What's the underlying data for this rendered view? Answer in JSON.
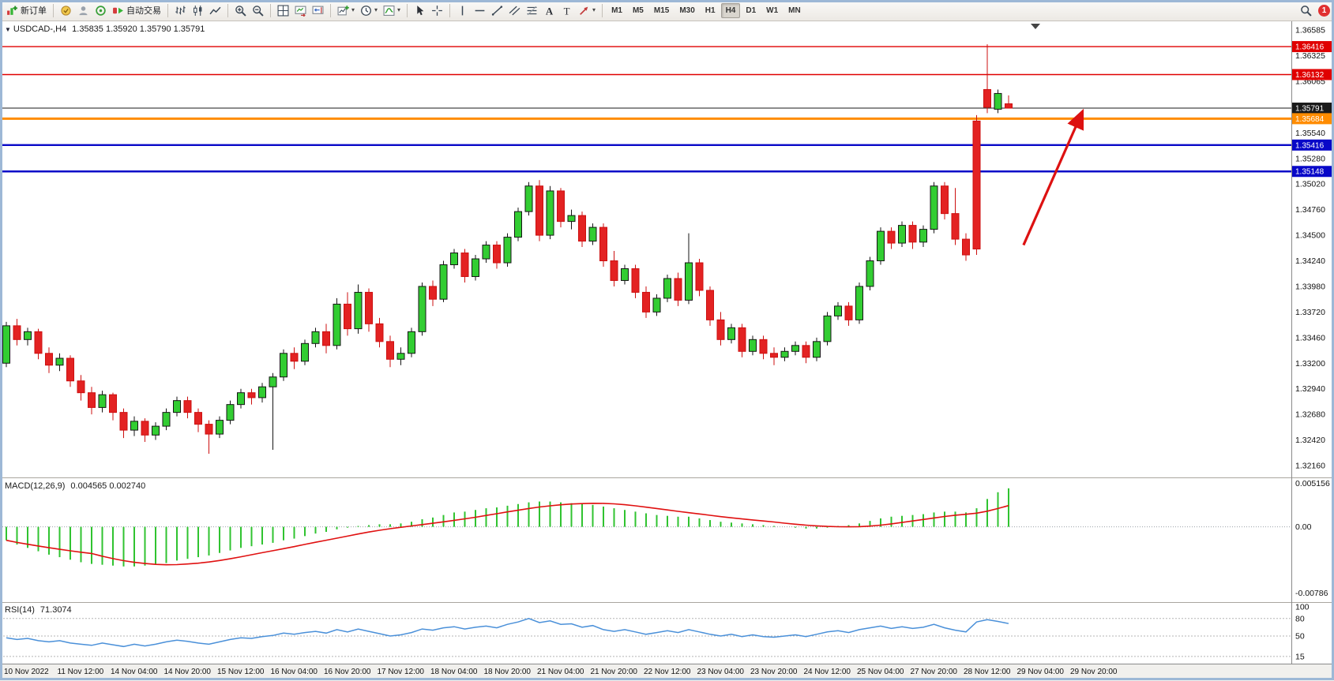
{
  "toolbar": {
    "new_order": "新订单",
    "auto_trading": "自动交易",
    "timeframes": [
      "M1",
      "M5",
      "M15",
      "M30",
      "H1",
      "H4",
      "D1",
      "W1",
      "MN"
    ],
    "active_timeframe": "H4",
    "notification_count": "1"
  },
  "chart": {
    "symbol_period": "USDCAD-,H4",
    "ohlc": "1.35835 1.35920 1.35790 1.35791",
    "price_axis": [
      "1.36585",
      "1.36325",
      "1.36065",
      "1.35540",
      "1.35280",
      "1.35020",
      "1.34760",
      "1.34500",
      "1.34240",
      "1.33980",
      "1.33720",
      "1.33460",
      "1.33200",
      "1.32940",
      "1.32680",
      "1.32420",
      "1.32160"
    ]
  },
  "macd": {
    "title": "MACD(12,26,9)",
    "values": "0.004565 0.002740",
    "axis": [
      {
        "v": 0.005156,
        "label": "0.005156"
      },
      {
        "v": 0,
        "label": "0.00"
      },
      {
        "v": -0.00786,
        "label": "-0.00786"
      }
    ]
  },
  "rsi": {
    "title": "RSI(14)",
    "value": "71.3074",
    "axis": [
      {
        "v": 100,
        "label": "100"
      },
      {
        "v": 80,
        "label": "80"
      },
      {
        "v": 50,
        "label": "50"
      },
      {
        "v": 15,
        "label": "15"
      }
    ],
    "levels": [
      80,
      50,
      15
    ]
  },
  "time_axis": [
    "10 Nov 2022",
    "11 Nov 12:00",
    "14 Nov 04:00",
    "14 Nov 20:00",
    "15 Nov 12:00",
    "16 Nov 04:00",
    "16 Nov 20:00",
    "17 Nov 12:00",
    "18 Nov 04:00",
    "18 Nov 20:00",
    "21 Nov 04:00",
    "21 Nov 20:00",
    "22 Nov 12:00",
    "23 Nov 04:00",
    "23 Nov 20:00",
    "24 Nov 12:00",
    "25 Nov 04:00",
    "27 Nov 20:00",
    "28 Nov 12:00",
    "29 Nov 04:00",
    "29 Nov 20:00"
  ],
  "chart_data": {
    "type": "candlestick",
    "symbol": "USDCAD-",
    "timeframe": "H4",
    "colors": {
      "bull_fill": "#32cd32",
      "bull_stroke": "#151515",
      "bear_fill": "#e32222",
      "bear_stroke": "#cc1010",
      "macd_histogram": "#30c330",
      "macd_signal": "#e01010",
      "rsi_line": "#4a90d9",
      "arrow": "#dd1111",
      "resistance": "#e00000",
      "support": "#0808c8",
      "pivot": "#ff8c00"
    },
    "candles": [
      [
        1.332,
        1.3362,
        1.3316,
        1.3358
      ],
      [
        1.3358,
        1.3365,
        1.3338,
        1.3344
      ],
      [
        1.3344,
        1.3356,
        1.3338,
        1.3352
      ],
      [
        1.3352,
        1.3355,
        1.3324,
        1.333
      ],
      [
        1.333,
        1.3336,
        1.331,
        1.3318
      ],
      [
        1.3318,
        1.333,
        1.3312,
        1.3325
      ],
      [
        1.3325,
        1.3328,
        1.3296,
        1.3302
      ],
      [
        1.3302,
        1.3308,
        1.3282,
        1.329
      ],
      [
        1.329,
        1.3296,
        1.3268,
        1.3275
      ],
      [
        1.3275,
        1.3292,
        1.327,
        1.3288
      ],
      [
        1.3288,
        1.329,
        1.3262,
        1.327
      ],
      [
        1.327,
        1.3274,
        1.3244,
        1.3252
      ],
      [
        1.3252,
        1.3266,
        1.3246,
        1.3261
      ],
      [
        1.3261,
        1.3264,
        1.324,
        1.3247
      ],
      [
        1.3247,
        1.326,
        1.3242,
        1.3256
      ],
      [
        1.3256,
        1.3274,
        1.3252,
        1.327
      ],
      [
        1.327,
        1.3286,
        1.3266,
        1.3282
      ],
      [
        1.3282,
        1.3286,
        1.3264,
        1.327
      ],
      [
        1.327,
        1.3274,
        1.325,
        1.3258
      ],
      [
        1.3258,
        1.3262,
        1.3228,
        1.3248
      ],
      [
        1.3248,
        1.3266,
        1.3244,
        1.3262
      ],
      [
        1.3262,
        1.3282,
        1.3258,
        1.3278
      ],
      [
        1.3278,
        1.3294,
        1.3274,
        1.329
      ],
      [
        1.329,
        1.3294,
        1.3278,
        1.3285
      ],
      [
        1.3285,
        1.33,
        1.328,
        1.3296
      ],
      [
        1.3296,
        1.331,
        1.3232,
        1.3306
      ],
      [
        1.3306,
        1.3334,
        1.3302,
        1.333
      ],
      [
        1.333,
        1.3336,
        1.3314,
        1.3322
      ],
      [
        1.3322,
        1.3344,
        1.3318,
        1.334
      ],
      [
        1.334,
        1.3356,
        1.3336,
        1.3352
      ],
      [
        1.3352,
        1.336,
        1.333,
        1.3338
      ],
      [
        1.3338,
        1.3386,
        1.3334,
        1.338
      ],
      [
        1.338,
        1.3392,
        1.3348,
        1.3355
      ],
      [
        1.3355,
        1.34,
        1.335,
        1.3392
      ],
      [
        1.3392,
        1.3396,
        1.3352,
        1.336
      ],
      [
        1.336,
        1.3366,
        1.3336,
        1.3342
      ],
      [
        1.3342,
        1.3348,
        1.3316,
        1.3324
      ],
      [
        1.3324,
        1.3336,
        1.3318,
        1.333
      ],
      [
        1.333,
        1.3356,
        1.3326,
        1.3352
      ],
      [
        1.3352,
        1.3402,
        1.3348,
        1.3398
      ],
      [
        1.3398,
        1.3404,
        1.3378,
        1.3385
      ],
      [
        1.3385,
        1.3424,
        1.3382,
        1.342
      ],
      [
        1.342,
        1.3436,
        1.3416,
        1.3432
      ],
      [
        1.3432,
        1.3436,
        1.3402,
        1.3408
      ],
      [
        1.3408,
        1.343,
        1.3404,
        1.3426
      ],
      [
        1.3426,
        1.3444,
        1.3422,
        1.344
      ],
      [
        1.344,
        1.3444,
        1.3416,
        1.3422
      ],
      [
        1.3422,
        1.3452,
        1.3418,
        1.3448
      ],
      [
        1.3448,
        1.3478,
        1.3444,
        1.3474
      ],
      [
        1.3474,
        1.3504,
        1.347,
        1.35
      ],
      [
        1.35,
        1.3506,
        1.3444,
        1.345
      ],
      [
        1.345,
        1.35,
        1.3446,
        1.3495
      ],
      [
        1.3495,
        1.3498,
        1.3458,
        1.3464
      ],
      [
        1.3464,
        1.3476,
        1.3456,
        1.347
      ],
      [
        1.347,
        1.3474,
        1.3438,
        1.3444
      ],
      [
        1.3444,
        1.3462,
        1.344,
        1.3458
      ],
      [
        1.3458,
        1.3462,
        1.3418,
        1.3424
      ],
      [
        1.3424,
        1.3434,
        1.3398,
        1.3404
      ],
      [
        1.3404,
        1.342,
        1.34,
        1.3416
      ],
      [
        1.3416,
        1.342,
        1.3386,
        1.3392
      ],
      [
        1.3392,
        1.3398,
        1.3366,
        1.3372
      ],
      [
        1.3372,
        1.339,
        1.3368,
        1.3386
      ],
      [
        1.3386,
        1.341,
        1.3382,
        1.3406
      ],
      [
        1.3406,
        1.3412,
        1.3378,
        1.3384
      ],
      [
        1.3384,
        1.3452,
        1.338,
        1.3422
      ],
      [
        1.3422,
        1.3426,
        1.3388,
        1.3394
      ],
      [
        1.3394,
        1.3398,
        1.3358,
        1.3364
      ],
      [
        1.3364,
        1.3372,
        1.3338,
        1.3344
      ],
      [
        1.3344,
        1.336,
        1.334,
        1.3356
      ],
      [
        1.3356,
        1.336,
        1.3326,
        1.3332
      ],
      [
        1.3332,
        1.3348,
        1.3328,
        1.3344
      ],
      [
        1.3344,
        1.3348,
        1.3324,
        1.333
      ],
      [
        1.333,
        1.3336,
        1.3318,
        1.3326
      ],
      [
        1.3326,
        1.3336,
        1.3322,
        1.3332
      ],
      [
        1.3332,
        1.3342,
        1.3328,
        1.3338
      ],
      [
        1.3338,
        1.3342,
        1.332,
        1.3326
      ],
      [
        1.3326,
        1.3346,
        1.3322,
        1.3342
      ],
      [
        1.3342,
        1.3372,
        1.3338,
        1.3368
      ],
      [
        1.3368,
        1.3382,
        1.3364,
        1.3378
      ],
      [
        1.3378,
        1.3382,
        1.3358,
        1.3364
      ],
      [
        1.3364,
        1.3402,
        1.336,
        1.3398
      ],
      [
        1.3398,
        1.3428,
        1.3394,
        1.3424
      ],
      [
        1.3424,
        1.3458,
        1.342,
        1.3454
      ],
      [
        1.3454,
        1.3458,
        1.3436,
        1.3442
      ],
      [
        1.3442,
        1.3464,
        1.3438,
        1.346
      ],
      [
        1.346,
        1.3464,
        1.3436,
        1.3443
      ],
      [
        1.3443,
        1.346,
        1.3438,
        1.3456
      ],
      [
        1.3456,
        1.3504,
        1.3452,
        1.35
      ],
      [
        1.35,
        1.3504,
        1.3466,
        1.3472
      ],
      [
        1.3472,
        1.3498,
        1.344,
        1.3446
      ],
      [
        1.3446,
        1.3452,
        1.3424,
        1.343
      ],
      [
        1.3566,
        1.3572,
        1.343,
        1.3436
      ],
      [
        1.3598,
        1.3644,
        1.3574,
        1.358
      ],
      [
        1.3578,
        1.3598,
        1.3574,
        1.3594
      ],
      [
        1.35835,
        1.3592,
        1.3579,
        1.35791
      ]
    ],
    "hlines": [
      {
        "name": "resistance-line-1",
        "price": 1.36416,
        "label": "1.36416",
        "color": "#e00000",
        "width": 1.4
      },
      {
        "name": "resistance-line-2",
        "price": 1.36132,
        "label": "1.36132",
        "color": "#e00000",
        "width": 1.4
      },
      {
        "name": "current-price-line",
        "price": 1.35791,
        "label": "1.35791",
        "color": "#1a1a1a",
        "width": 1
      },
      {
        "name": "pivot-line",
        "price": 1.35684,
        "label": "1.35684",
        "color": "#ff8c00",
        "width": 3
      },
      {
        "name": "support-line-1",
        "price": 1.35416,
        "label": "1.35416",
        "color": "#0808c8",
        "width": 2.4
      },
      {
        "name": "support-line-2",
        "price": 1.35148,
        "label": "1.35148",
        "color": "#0808c8",
        "width": 2.4
      }
    ],
    "macd_histogram": [
      -0.0016,
      -0.0021,
      -0.0025,
      -0.0029,
      -0.0033,
      -0.0036,
      -0.0039,
      -0.0042,
      -0.0044,
      -0.0045,
      -0.0046,
      -0.0047,
      -0.0047,
      -0.0046,
      -0.0045,
      -0.0043,
      -0.004,
      -0.0038,
      -0.0036,
      -0.0034,
      -0.0031,
      -0.0028,
      -0.0025,
      -0.0023,
      -0.0021,
      -0.0019,
      -0.0016,
      -0.0014,
      -0.0011,
      -0.0008,
      -0.0006,
      -0.0003,
      -0.0001,
      0.0001,
      0.0002,
      0.0003,
      0.0003,
      0.0004,
      0.0006,
      0.0009,
      0.0011,
      0.0014,
      0.0017,
      0.0018,
      0.002,
      0.0022,
      0.0023,
      0.0025,
      0.0027,
      0.0029,
      0.003,
      0.003,
      0.0029,
      0.0028,
      0.0027,
      0.0026,
      0.0024,
      0.0022,
      0.002,
      0.0018,
      0.0016,
      0.0014,
      0.0013,
      0.0012,
      0.0012,
      0.001,
      0.0008,
      0.0006,
      0.0005,
      0.0004,
      0.0003,
      0.0002,
      0.0001,
      0.0,
      -0.0001,
      -0.0002,
      -0.0002,
      -0.0001,
      0.0001,
      0.0002,
      0.0004,
      0.0007,
      0.001,
      0.0012,
      0.0013,
      0.0014,
      0.0015,
      0.0017,
      0.0018,
      0.0018,
      0.0017,
      0.0022,
      0.0033,
      0.0041,
      0.004565
    ],
    "macd_signal_period": 9,
    "rsi_period": 14,
    "rsi_values": [
      47,
      44,
      46,
      42,
      40,
      42,
      38,
      36,
      34,
      38,
      35,
      32,
      36,
      33,
      36,
      40,
      43,
      41,
      38,
      36,
      40,
      44,
      47,
      46,
      49,
      51,
      55,
      53,
      56,
      58,
      55,
      61,
      57,
      62,
      58,
      54,
      50,
      52,
      56,
      62,
      60,
      64,
      66,
      62,
      65,
      67,
      64,
      70,
      74,
      80,
      73,
      76,
      70,
      71,
      65,
      68,
      61,
      58,
      61,
      57,
      53,
      56,
      59,
      56,
      61,
      57,
      53,
      50,
      53,
      49,
      52,
      49,
      48,
      50,
      52,
      49,
      53,
      57,
      59,
      56,
      61,
      64,
      67,
      63,
      66,
      63,
      65,
      70,
      64,
      60,
      57,
      74,
      78,
      75,
      71.3
    ],
    "arrow_annotation": {
      "from_index": 95.4,
      "from_price": 1.344,
      "to_index": 100.9,
      "to_price": 1.3575
    }
  }
}
